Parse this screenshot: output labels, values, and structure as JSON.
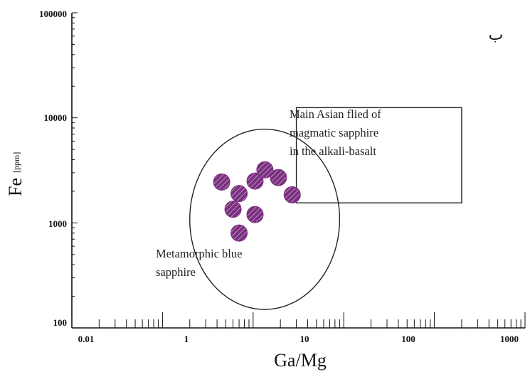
{
  "chart_data": {
    "type": "scatter",
    "panel_label": "ب",
    "xlabel": "Ga/Mg",
    "ylabel": "Fe",
    "ylabel_unit": "[ppm]",
    "x_scale": "log",
    "y_scale": "log",
    "xlim": [
      0.01,
      1000
    ],
    "ylim": [
      100,
      100000
    ],
    "x_ticks": [
      "0.01",
      "1",
      "10",
      "100",
      "1000"
    ],
    "y_ticks": [
      "100000",
      "10000",
      "1000",
      "100"
    ],
    "grid": false,
    "marker_color": "#7a2f7e",
    "points": [
      {
        "x": 0.45,
        "y": 2450
      },
      {
        "x": 0.7,
        "y": 1900
      },
      {
        "x": 0.6,
        "y": 1350
      },
      {
        "x": 0.7,
        "y": 800
      },
      {
        "x": 1.05,
        "y": 2500
      },
      {
        "x": 1.05,
        "y": 1200
      },
      {
        "x": 1.35,
        "y": 3200
      },
      {
        "x": 1.9,
        "y": 2700
      },
      {
        "x": 2.7,
        "y": 1850
      }
    ],
    "fields": [
      {
        "shape": "ellipse",
        "label": [
          "Metamorphic blue",
          "sapphire"
        ]
      },
      {
        "shape": "rectangle",
        "label": [
          "Main Asian flied of",
          "magmatic sapphire",
          "in the alkali-basalt"
        ]
      }
    ]
  }
}
